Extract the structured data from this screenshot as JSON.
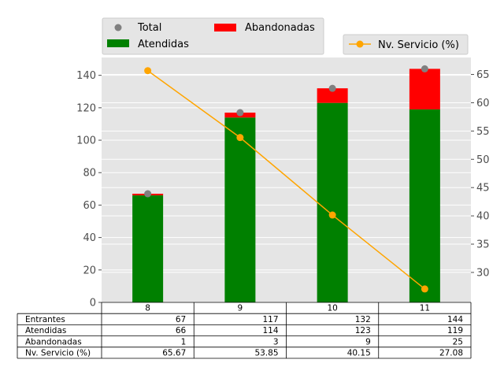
{
  "chart_data": {
    "type": "bar",
    "categories": [
      "8",
      "9",
      "10",
      "11"
    ],
    "y_left_lim": [
      0,
      151
    ],
    "y_left_ticks": [
      0,
      20,
      40,
      60,
      80,
      100,
      120,
      140
    ],
    "y_right_lim": [
      24.7,
      68
    ],
    "y_right_ticks": [
      30,
      35,
      40,
      45,
      50,
      55,
      60,
      65
    ],
    "grid": true,
    "series": [
      {
        "name": "Atendidas",
        "type": "bar",
        "stack": "main",
        "color": "#008000",
        "values": [
          66,
          114,
          123,
          119
        ]
      },
      {
        "name": "Abandonadas",
        "type": "bar",
        "stack": "main",
        "color": "#ff0000",
        "values": [
          1,
          3,
          9,
          25
        ]
      },
      {
        "name": "Total",
        "type": "scatter",
        "color": "#808080",
        "values": [
          67,
          117,
          132,
          144
        ]
      },
      {
        "name": "Nv. Servicio (%)",
        "type": "line",
        "axis": "right",
        "color": "#ffa500",
        "values": [
          65.67,
          53.85,
          40.15,
          27.08
        ]
      }
    ],
    "legend_left": {
      "placement": "top-left",
      "entries": [
        "Total",
        "Abandonadas",
        "Atendidas"
      ]
    },
    "legend_right": {
      "placement": "top-right",
      "entries": [
        "Nv. Servicio (%)"
      ]
    },
    "table": {
      "rows": [
        {
          "label": "Entrantes",
          "values": [
            "67",
            "117",
            "132",
            "144"
          ]
        },
        {
          "label": "Atendidas",
          "values": [
            "66",
            "114",
            "123",
            "119"
          ]
        },
        {
          "label": "Abandonadas",
          "values": [
            "1",
            "3",
            "9",
            "25"
          ]
        },
        {
          "label": "Nv. Servicio (%)",
          "values": [
            "65.67",
            "53.85",
            "40.15",
            "27.08"
          ]
        }
      ]
    }
  }
}
